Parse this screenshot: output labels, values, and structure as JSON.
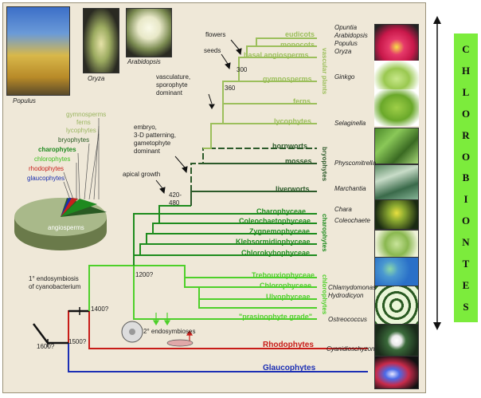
{
  "photos": {
    "populus": "Populus",
    "oryza": "Oryza",
    "arabidopsis": "Arabidopsis"
  },
  "pie": {
    "labels": [
      "gymnosperms",
      "ferns",
      "lycophytes",
      "bryophytes",
      "charophytes",
      "chlorophytes",
      "rhodophytes",
      "glaucophytes"
    ],
    "center_label": "angiosperms",
    "colors": {
      "gymnosperms": "#9ab560",
      "ferns": "#9ab560",
      "lycophytes": "#9ab560",
      "bryophytes": "#2a5a23",
      "charophytes": "#1f8a1f",
      "chlorophytes": "#3fbf1f",
      "rhodophytes": "#c8201c",
      "glaucophytes": "#1a2fb0",
      "angiosperms": "#a9b98a"
    }
  },
  "events": {
    "endosymbiosis": "1° endosymbiosis\nof cyanobacterium",
    "secondary_endo": "2° endosymbioses",
    "apical_growth": "apical growth",
    "embryo": "embryo,\n3-D patterning,\ngametophyte\ndominant",
    "vasculature": "vasculature,\nsporophyte\ndominant",
    "seeds": "seeds",
    "flowers": "flowers"
  },
  "ages": [
    "1600?",
    "1500?",
    "1400?",
    "1200?",
    "420-\n480",
    "360",
    "300"
  ],
  "clades": {
    "angiosperm_side": [
      "eudicots",
      "monocots",
      "basal angiosperms",
      "gymnosperms",
      "ferns",
      "lycophytes"
    ],
    "bryophytes": [
      "hornworts",
      "mosses",
      "liverworts"
    ],
    "charophytes": [
      "Charophyceae",
      "Coleochaetophyceae",
      "Zygnemophyceae",
      "Klebsormidiophyceae",
      "Chlorokybophyceae"
    ],
    "chlorophytes": [
      "Trebouxiophyceae",
      "Chlorophyceae",
      "Ulvophyceae",
      "\"prasinophyte grade\""
    ],
    "rhodophytes": "Rhodophytes",
    "glaucophytes": "Glaucophytes"
  },
  "group_labels": {
    "vascular": "vascular plants",
    "bryophytes": "bryophytes",
    "charophytes": "charophytes",
    "chlorophytes": "chlorophytes"
  },
  "species": [
    "Opuntia",
    "Arabidopsis",
    "Populus",
    "Oryza",
    "Ginkgo",
    "Selaginella",
    "Physcomitrella",
    "Marchantia",
    "Chara",
    "Coleochaete",
    "Chlamydomonas",
    "Hydrodicyon",
    "Ostreococcus",
    "Cyanidioschyzon"
  ],
  "side_label": "CHLOROBIONTES",
  "colors": {
    "vascular": "#9cbf5c",
    "bryophyte": "#2c5a2a",
    "charophyte": "#1e8c1e",
    "chlorophyte": "#4ed02a",
    "rhodophyte": "#c81c18",
    "glaucophyte": "#1c2fb4",
    "trunk": "#111111"
  }
}
